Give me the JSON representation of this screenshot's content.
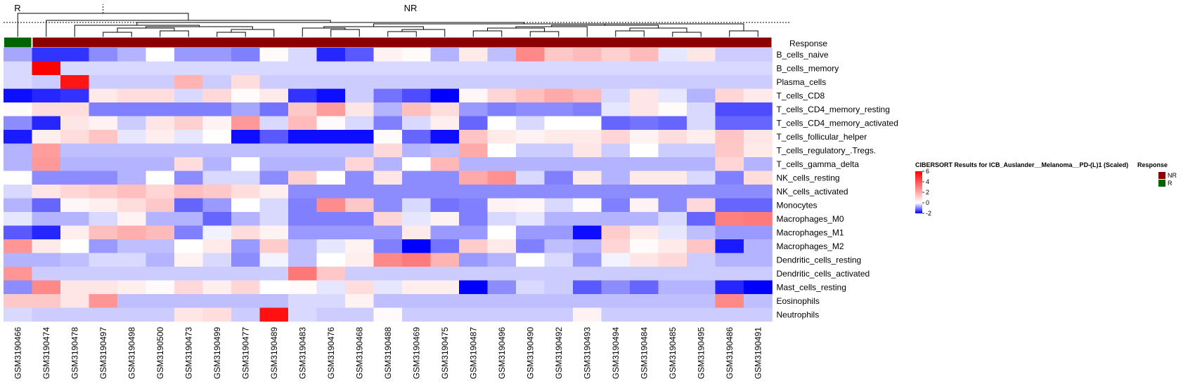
{
  "chart_data": {
    "type": "heatmap",
    "title": "CIBERSORT Results for ICB_Auslander__Melanoma__PD-(L)1 (Scaled)",
    "annotation": {
      "name": "Response",
      "legend_title": "Response",
      "levels": [
        {
          "name": "NR",
          "color": "#8b0000"
        },
        {
          "name": "R",
          "color": "#006400"
        }
      ],
      "groups": [
        {
          "label": "R",
          "count": 1
        },
        {
          "label": "NR",
          "count": 26
        }
      ]
    },
    "color_scale": {
      "low": "#0000ff",
      "mid": "#ffffff",
      "high": "#ff0000",
      "min": -2,
      "max": 6,
      "ticks": [
        6,
        4,
        2,
        0,
        -2
      ]
    },
    "samples": [
      "GSM3190466",
      "GSM3190474",
      "GSM3190478",
      "GSM3190497",
      "GSM3190498",
      "GSM3190500",
      "GSM3190473",
      "GSM3190499",
      "GSM3190477",
      "GSM3190489",
      "GSM3190483",
      "GSM3190476",
      "GSM3190468",
      "GSM3190488",
      "GSM3190469",
      "GSM3190475",
      "GSM3190487",
      "GSM3190496",
      "GSM3190490",
      "GSM3190492",
      "GSM3190493",
      "GSM3190494",
      "GSM3190484",
      "GSM3190485",
      "GSM3190495",
      "GSM3190486",
      "GSM3190491"
    ],
    "rows": [
      "B_cells_naive",
      "B_cells_memory",
      "Plasma_cells",
      "T_cells_CD8",
      "T_cells_CD4_memory_resting",
      "T_cells_CD4_memory_activated",
      "T_cells_follicular_helper",
      "T_cells_regulatory_.Tregs.",
      "T_cells_gamma_delta",
      "NK_cells_resting",
      "NK_cells_activated",
      "Monocytes",
      "Macrophages_M0",
      "Macrophages_M1",
      "Macrophages_M2",
      "Dendritic_cells_resting",
      "Dendritic_cells_activated",
      "Mast_cells_resting",
      "Eosinophils",
      "Neutrophils"
    ],
    "values": [
      [
        -0.7,
        -1.6,
        -1.6,
        -0.9,
        -0.6,
        0.0,
        -0.8,
        -0.8,
        -1.0,
        0.1,
        -0.3,
        -1.7,
        -1.3,
        0.3,
        0.1,
        -0.6,
        0.5,
        -0.5,
        2.8,
        1.3,
        1.6,
        1.1,
        1.6,
        -0.2,
        0.6,
        -0.4,
        -0.4
      ],
      [
        -0.3,
        6.0,
        -0.3,
        -0.3,
        -0.3,
        -0.3,
        -0.3,
        -0.3,
        -0.3,
        -0.3,
        -0.3,
        -0.3,
        -0.3,
        -0.3,
        -0.3,
        -0.3,
        -0.3,
        -0.3,
        -0.3,
        -0.3,
        -0.3,
        -0.3,
        -0.3,
        -0.3,
        -0.3,
        -0.3,
        -0.3
      ],
      [
        -0.3,
        -0.4,
        5.5,
        -0.4,
        -0.4,
        -0.4,
        1.8,
        -0.4,
        0.8,
        -0.4,
        -0.4,
        -0.4,
        -0.4,
        -0.4,
        -0.4,
        -0.4,
        -0.4,
        -0.4,
        -0.4,
        -0.4,
        -0.4,
        -0.4,
        -0.4,
        -0.4,
        -0.4,
        -0.4,
        -0.4
      ],
      [
        -1.9,
        -1.7,
        -1.6,
        0.5,
        0.8,
        0.8,
        -0.3,
        0.9,
        0.1,
        0.5,
        -1.6,
        -1.9,
        -0.4,
        -1.1,
        -1.4,
        -2.0,
        0.2,
        1.0,
        1.5,
        2.0,
        1.6,
        -0.3,
        0.6,
        -0.2,
        -0.6,
        1.0,
        0.5
      ],
      [
        0.1,
        0.8,
        0.8,
        -1.0,
        -1.0,
        -1.0,
        -1.0,
        -1.0,
        -0.7,
        -1.1,
        1.3,
        2.3,
        0.6,
        -0.6,
        1.5,
        0.8,
        -0.8,
        -1.0,
        -0.9,
        -0.9,
        -1.0,
        -0.2,
        0.6,
        0.1,
        -0.3,
        -1.4,
        -1.4
      ],
      [
        -0.9,
        -1.7,
        0.6,
        0.3,
        -0.4,
        0.6,
        1.1,
        0.3,
        2.4,
        -0.3,
        1.6,
        0.1,
        -0.3,
        -1.0,
        -0.3,
        0.4,
        -1.2,
        0.0,
        -0.3,
        0.0,
        0.0,
        -1.2,
        -1.1,
        -1.2,
        -0.3,
        -1.2,
        -1.2
      ],
      [
        -1.8,
        0.4,
        0.8,
        1.4,
        -0.2,
        0.4,
        -0.2,
        0.0,
        -1.9,
        -1.3,
        -1.9,
        -1.9,
        -1.9,
        0.1,
        -1.2,
        -1.9,
        1.4,
        0.5,
        0.3,
        0.5,
        0.5,
        1.0,
        0.3,
        0.8,
        0.4,
        1.4,
        0.6
      ],
      [
        -0.6,
        2.3,
        -0.5,
        -0.5,
        -0.5,
        -0.5,
        -0.5,
        -0.5,
        -0.5,
        -0.5,
        -0.5,
        -0.5,
        -0.5,
        0.9,
        -0.6,
        -0.5,
        2.0,
        0.0,
        -0.4,
        -0.4,
        0.6,
        -0.4,
        0.0,
        -0.4,
        -0.4,
        1.3,
        0.5
      ],
      [
        -0.6,
        2.4,
        -0.6,
        -0.6,
        -0.6,
        -0.6,
        0.8,
        -0.6,
        0.0,
        -0.6,
        -0.6,
        -0.6,
        1.0,
        -0.6,
        0.0,
        1.7,
        -0.6,
        -0.6,
        -0.6,
        -0.6,
        -0.6,
        -0.6,
        -0.6,
        -0.6,
        -0.6,
        1.0,
        -0.6
      ],
      [
        0.0,
        -0.9,
        -0.9,
        -0.9,
        -0.6,
        0.0,
        -0.9,
        -0.3,
        -0.3,
        -0.9,
        1.1,
        0.0,
        -0.9,
        0.6,
        -0.9,
        -0.9,
        2.0,
        2.6,
        -0.3,
        -1.0,
        0.5,
        -0.6,
        0.5,
        0.5,
        -0.3,
        -1.0,
        0.8
      ],
      [
        -0.3,
        0.6,
        1.0,
        1.2,
        1.5,
        1.0,
        1.5,
        1.3,
        0.8,
        0.4,
        -0.9,
        -0.9,
        -0.9,
        -0.9,
        -0.9,
        -0.9,
        -0.9,
        -0.9,
        -0.9,
        -0.9,
        -0.9,
        -0.9,
        -0.9,
        -0.9,
        -0.9,
        -0.9,
        -0.9
      ],
      [
        -0.6,
        -1.2,
        0.2,
        0.4,
        0.8,
        1.3,
        -1.2,
        -0.8,
        0.0,
        -0.3,
        -1.0,
        2.7,
        1.3,
        -0.9,
        -0.3,
        -1.1,
        -1.0,
        0.3,
        0.2,
        -0.3,
        0.1,
        -1.0,
        0.3,
        -0.9,
        0.9,
        -1.2,
        -1.2
      ],
      [
        -0.2,
        -0.6,
        -0.6,
        -0.3,
        0.3,
        -0.6,
        -0.6,
        -1.2,
        -0.6,
        -0.3,
        -1.0,
        -1.0,
        -1.0,
        1.0,
        -0.2,
        0.3,
        -1.0,
        -0.3,
        -0.2,
        -0.6,
        -0.6,
        -0.6,
        -0.6,
        -0.3,
        -1.2,
        3.0,
        3.1
      ],
      [
        -1.3,
        -1.7,
        0.4,
        1.5,
        1.9,
        1.6,
        -1.0,
        -0.1,
        0.8,
        0.3,
        -0.8,
        -0.8,
        -0.8,
        -0.8,
        0.5,
        -0.8,
        -0.8,
        0.0,
        -0.8,
        -0.8,
        -1.9,
        1.2,
        0.5,
        -0.2,
        -0.5,
        -0.8,
        -0.8
      ],
      [
        2.5,
        0.5,
        0.0,
        -0.8,
        -0.5,
        -0.5,
        0.0,
        0.5,
        -0.8,
        1.2,
        -0.5,
        -0.2,
        0.3,
        -1.0,
        -2.0,
        -1.1,
        1.2,
        0.5,
        -1.0,
        -0.5,
        -0.6,
        1.0,
        0.1,
        0.5,
        1.4,
        -1.8,
        -0.6
      ],
      [
        -0.6,
        -0.6,
        -0.5,
        -0.3,
        -0.3,
        -0.6,
        0.3,
        -0.3,
        -0.9,
        -0.1,
        -0.5,
        0.0,
        0.4,
        2.8,
        3.1,
        1.8,
        -0.8,
        -0.6,
        0.0,
        -0.3,
        -0.8,
        -0.1,
        0.6,
        0.9,
        -0.4,
        -0.6,
        -0.6
      ],
      [
        2.5,
        -0.4,
        -0.4,
        -0.4,
        -0.4,
        -0.4,
        -0.4,
        -0.4,
        -0.4,
        -0.4,
        3.2,
        1.3,
        -0.4,
        -0.4,
        -0.4,
        -0.4,
        -0.4,
        -0.4,
        -0.4,
        -0.4,
        -0.4,
        -0.4,
        -0.4,
        -0.4,
        -0.4,
        -0.4,
        -0.4
      ],
      [
        -0.9,
        2.8,
        0.6,
        0.6,
        0.4,
        0.1,
        0.9,
        0.4,
        1.0,
        0.0,
        0.1,
        -0.2,
        0.8,
        -0.2,
        0.4,
        0.4,
        -2.0,
        -0.9,
        -0.3,
        -0.4,
        -1.3,
        -0.9,
        -1.2,
        -0.6,
        -0.6,
        -1.7,
        -2.0
      ],
      [
        1.3,
        1.3,
        0.6,
        2.5,
        -0.5,
        -0.5,
        -0.5,
        -0.5,
        -0.5,
        -0.5,
        -0.3,
        -0.3,
        0.3,
        -0.5,
        -0.5,
        -0.5,
        -0.5,
        -0.5,
        -0.5,
        -0.5,
        -0.5,
        -0.5,
        -0.5,
        -0.5,
        -0.5,
        2.8,
        -0.5
      ],
      [
        -0.3,
        -0.4,
        -0.4,
        -0.4,
        -0.4,
        -0.4,
        0.6,
        0.8,
        -0.4,
        5.6,
        -0.3,
        -0.4,
        -0.4,
        0.1,
        -0.4,
        -0.4,
        -0.4,
        -0.4,
        -0.4,
        -0.4,
        0.3,
        -0.4,
        -0.4,
        -0.4,
        -0.4,
        -0.4,
        -0.4
      ]
    ]
  }
}
